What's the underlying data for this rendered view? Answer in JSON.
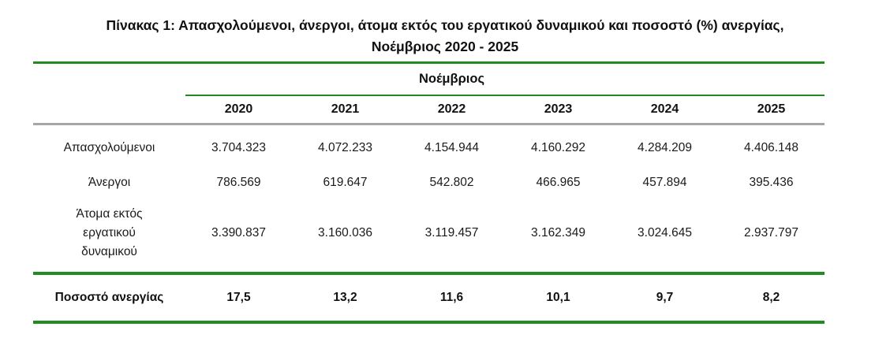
{
  "title": {
    "line1": "Πίνακας 1: Απασχολούμενοι, άνεργοι, άτομα εκτός του εργατικού δυναμικού και ποσοστό (%) ανεργίας,",
    "line2": "Νοέμβριος 2020 - 2025"
  },
  "table": {
    "month_header": "Νοέμβριος",
    "years": [
      "2020",
      "2021",
      "2022",
      "2023",
      "2024",
      "2025"
    ],
    "rows": [
      {
        "label": "Απασχολούμενοι",
        "values": [
          "3.704.323",
          "4.072.233",
          "4.154.944",
          "4.160.292",
          "4.284.209",
          "4.406.148"
        ]
      },
      {
        "label": "Άνεργοι",
        "values": [
          "786.569",
          "619.647",
          "542.802",
          "466.965",
          "457.894",
          "395.436"
        ]
      },
      {
        "label": "Άτομα εκτός εργατικού δυναμικού",
        "values": [
          "3.390.837",
          "3.160.036",
          "3.119.457",
          "3.162.349",
          "3.024.645",
          "2.937.797"
        ]
      }
    ],
    "footer_row": {
      "label": "Ποσοστό ανεργίας",
      "values": [
        "17,5",
        "13,2",
        "11,6",
        "10,1",
        "9,7",
        "8,2"
      ]
    }
  },
  "colors": {
    "rule_green": "#228B22",
    "rule_gray": "#A6A6A6",
    "text": "#1A1A1A"
  }
}
